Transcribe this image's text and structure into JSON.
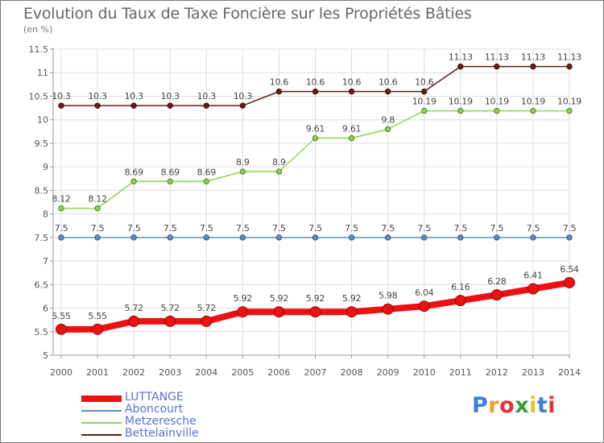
{
  "header": {
    "title": "Evolution du Taux de Taxe Foncière sur les Propriétés Bâties",
    "unit": "(en %)"
  },
  "chart_data": {
    "type": "line",
    "title": "Evolution du Taux de Taxe Foncière sur les Propriétés Bâties",
    "ylabel": "(en %)",
    "xlabel": "",
    "ylim": [
      5,
      11.5
    ],
    "yticks": [
      "5",
      "5.5",
      "6",
      "6.5",
      "7",
      "7.5",
      "8",
      "8.5",
      "9",
      "9.5",
      "10",
      "10.5",
      "11",
      "11.5"
    ],
    "x": [
      "2000",
      "2001",
      "2002",
      "2003",
      "2004",
      "2005",
      "2006",
      "2007",
      "2008",
      "2009",
      "2010",
      "2011",
      "2012",
      "2013",
      "2014"
    ],
    "grid": true,
    "legend_position": "bottom-left",
    "series": [
      {
        "name": "Bettelainville",
        "color": "#6b1a1a",
        "values": [
          10.3,
          10.3,
          10.3,
          10.3,
          10.3,
          10.3,
          10.6,
          10.6,
          10.6,
          10.6,
          10.6,
          11.13,
          11.13,
          11.13,
          11.13
        ],
        "labels": [
          "10.3",
          "10.3",
          "10.3",
          "10.3",
          "10.3",
          "10.3",
          "10.6",
          "10.6",
          "10.6",
          "10.6",
          "10.6",
          "11.13",
          "11.13",
          "11.13",
          "11.13"
        ]
      },
      {
        "name": "Metzeresche",
        "color": "#8fd14f",
        "values": [
          8.12,
          8.12,
          8.69,
          8.69,
          8.69,
          8.9,
          8.9,
          9.61,
          9.61,
          9.8,
          10.19,
          10.19,
          10.19,
          10.19,
          10.19
        ],
        "labels": [
          "8.12",
          "8.12",
          "8.69",
          "8.69",
          "8.69",
          "8.9",
          "8.9",
          "9.61",
          "9.61",
          "9.8",
          "10.19",
          "10.19",
          "10.19",
          "10.19",
          "10.19"
        ]
      },
      {
        "name": "Aboncourt",
        "color": "#5b8fc9",
        "values": [
          7.5,
          7.5,
          7.5,
          7.5,
          7.5,
          7.5,
          7.5,
          7.5,
          7.5,
          7.5,
          7.5,
          7.5,
          7.5,
          7.5,
          7.5
        ],
        "labels": [
          "7.5",
          "7.5",
          "7.5",
          "7.5",
          "7.5",
          "7.5",
          "7.5",
          "7.5",
          "7.5",
          "7.5",
          "7.5",
          "7.5",
          "7.5",
          "7.5",
          "7.5"
        ]
      },
      {
        "name": "LUTTANGE",
        "color": "#ee1111",
        "values": [
          5.55,
          5.55,
          5.72,
          5.72,
          5.72,
          5.92,
          5.92,
          5.92,
          5.92,
          5.98,
          6.04,
          6.16,
          6.28,
          6.41,
          6.54
        ],
        "labels": [
          "5.55",
          "5.55",
          "5.72",
          "5.72",
          "5.72",
          "5.92",
          "5.92",
          "5.92",
          "5.92",
          "5.98",
          "6.04",
          "6.16",
          "6.28",
          "6.41",
          "6.54"
        ]
      }
    ]
  },
  "legend": {
    "items": [
      {
        "label": "LUTTANGE",
        "color": "#ee1111"
      },
      {
        "label": "Aboncourt",
        "color": "#5b8fc9"
      },
      {
        "label": "Metzeresche",
        "color": "#8fd14f"
      },
      {
        "label": "Bettelainville",
        "color": "#6b1a1a"
      }
    ]
  },
  "logo": {
    "letters": [
      "P",
      "r",
      "o",
      "x",
      "i",
      "t",
      "i"
    ],
    "colors": [
      "#3a7fd8",
      "#f0a020",
      "#e83030",
      "#3a9b3a",
      "#e8c020",
      "#3a7fd8",
      "#e83030"
    ]
  }
}
